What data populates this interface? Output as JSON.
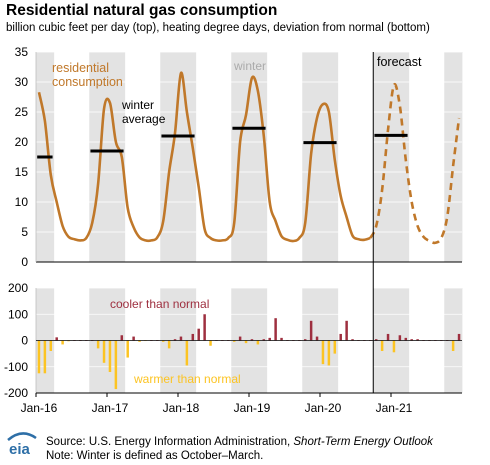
{
  "header": {
    "title": "Residential natural gas consumption",
    "subtitle": "billion cubic feet per day (top), heating degree days, deviation from normal (bottom)"
  },
  "footer": {
    "source_prefix": "Source: U.S. Energy Information Administration, ",
    "source_italic": "Short-Term Energy Outlook",
    "note": "Note: Winter is defined as October–March."
  },
  "logo": {
    "text": "eia",
    "icon": "eia-logo-icon"
  },
  "colors": {
    "consumption": "#C0782A",
    "winter_shade": "#E3E3E3",
    "forecast_shade": "#D9D9D9",
    "cooler": "#9E2F3F",
    "warmer": "#FCC423",
    "average": "#000000"
  },
  "chart_data": [
    {
      "type": "line",
      "title": "Residential natural gas consumption",
      "ylabel": "billion cubic feet per day",
      "ylim": [
        0,
        35
      ],
      "yticks": [
        0,
        5,
        10,
        15,
        20,
        25,
        30,
        35
      ],
      "x_tick_labels": [
        "Jan-16",
        "Jan-17",
        "Jan-18",
        "Jan-19",
        "Jan-20",
        "Jan-21"
      ],
      "x_range": [
        "2016-01",
        "2021-12"
      ],
      "annotations": {
        "series_label": "residential\nconsumption",
        "average_label": "winter\naverage",
        "winter_label": "winter",
        "forecast_label": "forecast"
      },
      "forecast_start": "2020-10",
      "series": [
        {
          "name": "residential consumption",
          "x_start": "2016-01",
          "values": [
            28.3,
            23.5,
            14.5,
            10.0,
            6.0,
            4.2,
            3.8,
            3.6,
            4.0,
            6.5,
            13.0,
            25.5,
            26.5,
            20.0,
            17.5,
            9.0,
            5.8,
            4.1,
            3.6,
            3.6,
            4.1,
            6.8,
            15.0,
            21.5,
            31.5,
            25.0,
            19.0,
            12.5,
            5.5,
            4.0,
            3.6,
            3.6,
            4.0,
            6.5,
            20.0,
            24.5,
            30.7,
            28.5,
            21.0,
            10.0,
            6.8,
            4.3,
            3.7,
            3.5,
            4.0,
            6.5,
            18.0,
            24.0,
            26.3,
            25.0,
            17.0,
            11.0,
            7.5,
            4.4,
            3.8,
            3.7,
            4.0,
            6.0,
            12.0,
            22.0,
            29.5,
            26.0,
            17.0,
            10.0,
            6.0,
            4.2,
            3.5,
            3.2,
            4.0,
            7.5,
            16.0,
            24.0
          ]
        }
      ],
      "winter_averages": [
        {
          "season": "2015-16",
          "value": 17.5
        },
        {
          "season": "2016-17",
          "value": 18.5
        },
        {
          "season": "2017-18",
          "value": 21.0
        },
        {
          "season": "2018-19",
          "value": 22.3
        },
        {
          "season": "2019-20",
          "value": 19.9
        },
        {
          "season": "2020-21",
          "value": 21.1
        }
      ]
    },
    {
      "type": "bar",
      "ylabel": "heating degree days, deviation from normal",
      "ylim": [
        -200,
        200
      ],
      "yticks": [
        -200,
        -100,
        0,
        100,
        200
      ],
      "annotations": {
        "cooler_label": "cooler than normal",
        "warmer_label": "warmer than normal"
      },
      "x_start": "2016-01",
      "values": [
        -125,
        -125,
        -40,
        12,
        -15,
        -3,
        0,
        0,
        0,
        0,
        -30,
        -85,
        -120,
        -185,
        20,
        -65,
        15,
        -5,
        -2,
        0,
        0,
        -5,
        -30,
        5,
        15,
        -95,
        25,
        45,
        100,
        -20,
        0,
        0,
        0,
        -5,
        15,
        -10,
        5,
        -15,
        5,
        10,
        85,
        10,
        0,
        0,
        0,
        5,
        75,
        15,
        -90,
        -95,
        -50,
        25,
        75,
        5,
        0,
        0,
        0,
        5,
        -40,
        25,
        -45,
        20,
        10,
        5,
        5,
        0,
        0,
        0,
        0,
        0,
        -40,
        25
      ]
    }
  ]
}
